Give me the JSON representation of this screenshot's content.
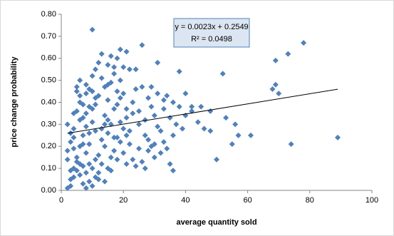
{
  "chart_data": {
    "type": "scatter",
    "x_label": "average quantity sold",
    "y_label": "price change probability",
    "color": "#4f81bd",
    "trendline": {
      "equation": "y = 0.0023x + 0.2549",
      "r2": "R² = 0.0498",
      "slope": 0.0023,
      "intercept": 0.2549
    },
    "xlim": [
      0,
      100
    ],
    "xticks": [
      0,
      20,
      40,
      60,
      80,
      100
    ],
    "ylim": [
      0,
      0.8
    ],
    "yticks": [
      {
        "value": 0,
        "label": "0.00"
      },
      {
        "value": 0.1,
        "label": "0.10"
      },
      {
        "value": 0.2,
        "label": "0.20"
      },
      {
        "value": 0.3,
        "label": "0.30"
      },
      {
        "value": 0.4,
        "label": "0.40"
      },
      {
        "value": 0.5,
        "label": "0.50"
      },
      {
        "value": 0.6,
        "label": "0.60"
      },
      {
        "value": 0.7,
        "label": "0.70"
      },
      {
        "value": 0.8,
        "label": "0.80"
      }
    ],
    "x": [
      2,
      3,
      4,
      5,
      6,
      7,
      8,
      9,
      10,
      11,
      2,
      3,
      4,
      5,
      6,
      7,
      8,
      9,
      10,
      11,
      2,
      3,
      4,
      5,
      6,
      7,
      8,
      9,
      10,
      11,
      3,
      4,
      5,
      6,
      7,
      8,
      9,
      10,
      11,
      12,
      4,
      5,
      6,
      7,
      8,
      9,
      10,
      11,
      12,
      13,
      12,
      13,
      14,
      15,
      16,
      17,
      18,
      19,
      20,
      21,
      12,
      13,
      14,
      15,
      16,
      17,
      18,
      19,
      20,
      21,
      13,
      14,
      15,
      16,
      17,
      18,
      19,
      20,
      21,
      22,
      14,
      15,
      16,
      17,
      18,
      19,
      20,
      21,
      22,
      23,
      22,
      23,
      24,
      25,
      26,
      27,
      28,
      29,
      30,
      31,
      24,
      25,
      26,
      27,
      28,
      29,
      30,
      31,
      32,
      33,
      32,
      33,
      34,
      35,
      36,
      37,
      38,
      39,
      40,
      42,
      2,
      3,
      5,
      6,
      8,
      9,
      11,
      13,
      15,
      18,
      4,
      6,
      7,
      8,
      10,
      12,
      14,
      16,
      19,
      24,
      26,
      28,
      30,
      31,
      33,
      35,
      36,
      38,
      40,
      42,
      10,
      78,
      73,
      69,
      52,
      68,
      69,
      70,
      89,
      74,
      61,
      55,
      56,
      57,
      50,
      48,
      46,
      45,
      53,
      48,
      44,
      36,
      34,
      29,
      27,
      25,
      23,
      21,
      17,
      15
    ],
    "values": [
      0.01,
      0.05,
      0.1,
      0.15,
      0.2,
      0.03,
      0.08,
      0.12,
      0.02,
      0.06,
      0.18,
      0.22,
      0.28,
      0.13,
      0.07,
      0.25,
      0.17,
      0.04,
      0.1,
      0.14,
      0.3,
      0.26,
      0.35,
      0.45,
      0.4,
      0.33,
      0.48,
      0.38,
      0.45,
      0.42,
      0.09,
      0.19,
      0.36,
      0.5,
      0.11,
      0.29,
      0.21,
      0.31,
      0.27,
      0.05,
      0.24,
      0.47,
      0.43,
      0.39,
      0.01,
      0.46,
      0.52,
      0.55,
      0.58,
      0.62,
      0.16,
      0.23,
      0.34,
      0.41,
      0.49,
      0.56,
      0.6,
      0.64,
      0.44,
      0.37,
      0.08,
      0.12,
      0.2,
      0.26,
      0.3,
      0.18,
      0.14,
      0.22,
      0.28,
      0.33,
      0.51,
      0.47,
      0.57,
      0.61,
      0.53,
      0.45,
      0.5,
      0.56,
      0.63,
      0.55,
      0.04,
      0.1,
      0.15,
      0.24,
      0.39,
      0.31,
      0.17,
      0.12,
      0.21,
      0.35,
      0.27,
      0.4,
      0.46,
      0.19,
      0.13,
      0.32,
      0.23,
      0.38,
      0.15,
      0.29,
      0.11,
      0.36,
      0.47,
      0.25,
      0.42,
      0.2,
      0.34,
      0.44,
      0.27,
      0.37,
      0.17,
      0.22,
      0.43,
      0.33,
      0.25,
      0.3,
      0.38,
      0.28,
      0.34,
      0.36,
      0.14,
      0.02,
      0.09,
      0.32,
      0.44,
      0.26,
      0.39,
      0.28,
      0.48,
      0.24,
      0.06,
      0.12,
      0.21,
      0.35,
      0.37,
      0.43,
      0.3,
      0.09,
      0.42,
      0.55,
      0.66,
      0.18,
      0.21,
      0.58,
      0.41,
      0.12,
      0.09,
      0.54,
      0.44,
      0.38,
      0.73,
      0.67,
      0.62,
      0.59,
      0.53,
      0.46,
      0.48,
      0.44,
      0.24,
      0.21,
      0.25,
      0.21,
      0.3,
      0.25,
      0.14,
      0.27,
      0.28,
      0.38,
      0.33,
      0.36,
      0.31,
      0.4,
      0.19,
      0.47,
      0.1,
      0.3,
      0.14,
      0.25,
      0.37,
      0.32
    ]
  }
}
